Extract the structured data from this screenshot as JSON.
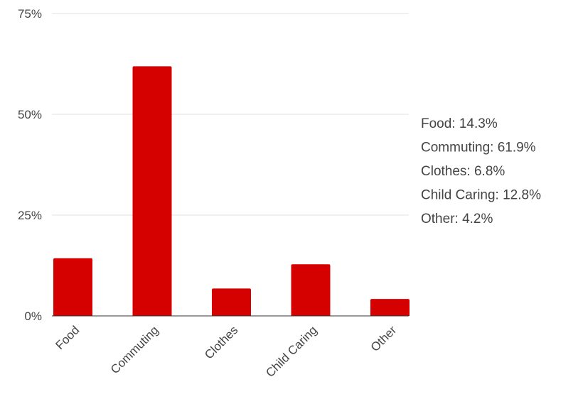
{
  "chart_data": {
    "type": "bar",
    "categories": [
      "Food",
      "Commuting",
      "Clothes",
      "Child Caring",
      "Other"
    ],
    "values": [
      14.3,
      61.9,
      6.8,
      12.8,
      4.2
    ],
    "y_unit": "%",
    "ylim": [
      0,
      75
    ],
    "yticks": [
      {
        "value": 0,
        "label": "0%"
      },
      {
        "value": 25,
        "label": "25%"
      },
      {
        "value": 50,
        "label": "50%"
      },
      {
        "value": 75,
        "label": "75%"
      }
    ],
    "legend": [
      "Food: 14.3%",
      "Commuting: 61.9%",
      "Clothes: 6.8%",
      "Child Caring: 12.8%",
      "Other: 4.2%"
    ],
    "legend_position": "right",
    "grid": true,
    "bar_color": "#d50000",
    "gridline_color": "#e0e0e0",
    "baseline_color": "#333333",
    "text_color": "#444444"
  }
}
